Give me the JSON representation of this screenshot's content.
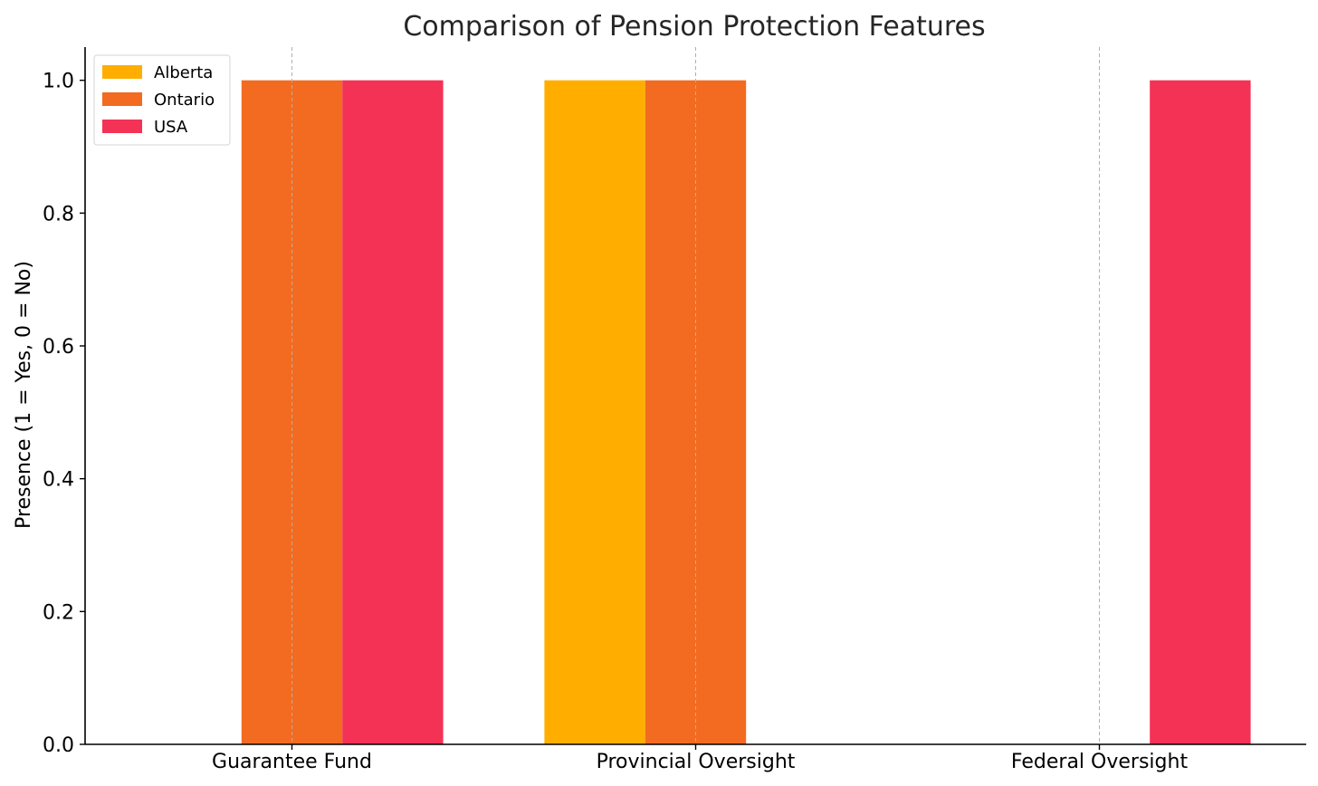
{
  "chart_data": {
    "type": "bar",
    "title": "Comparison of Pension Protection Features",
    "xlabel": "",
    "ylabel": "Presence (1 = Yes, 0 = No)",
    "categories": [
      "Guarantee Fund",
      "Provincial Oversight",
      "Federal Oversight"
    ],
    "series": [
      {
        "name": "Alberta",
        "values": [
          0,
          1,
          0
        ],
        "color": "#FFAE00"
      },
      {
        "name": "Ontario",
        "values": [
          1,
          1,
          0
        ],
        "color": "#F26B21"
      },
      {
        "name": "USA",
        "values": [
          1,
          0,
          1
        ],
        "color": "#F43255"
      }
    ],
    "ylim": [
      0,
      1.05
    ],
    "yticks": [
      "0.0",
      "0.2",
      "0.4",
      "0.6",
      "0.8",
      "1.0"
    ],
    "grid": "x-dashed",
    "legend": "top-left"
  }
}
